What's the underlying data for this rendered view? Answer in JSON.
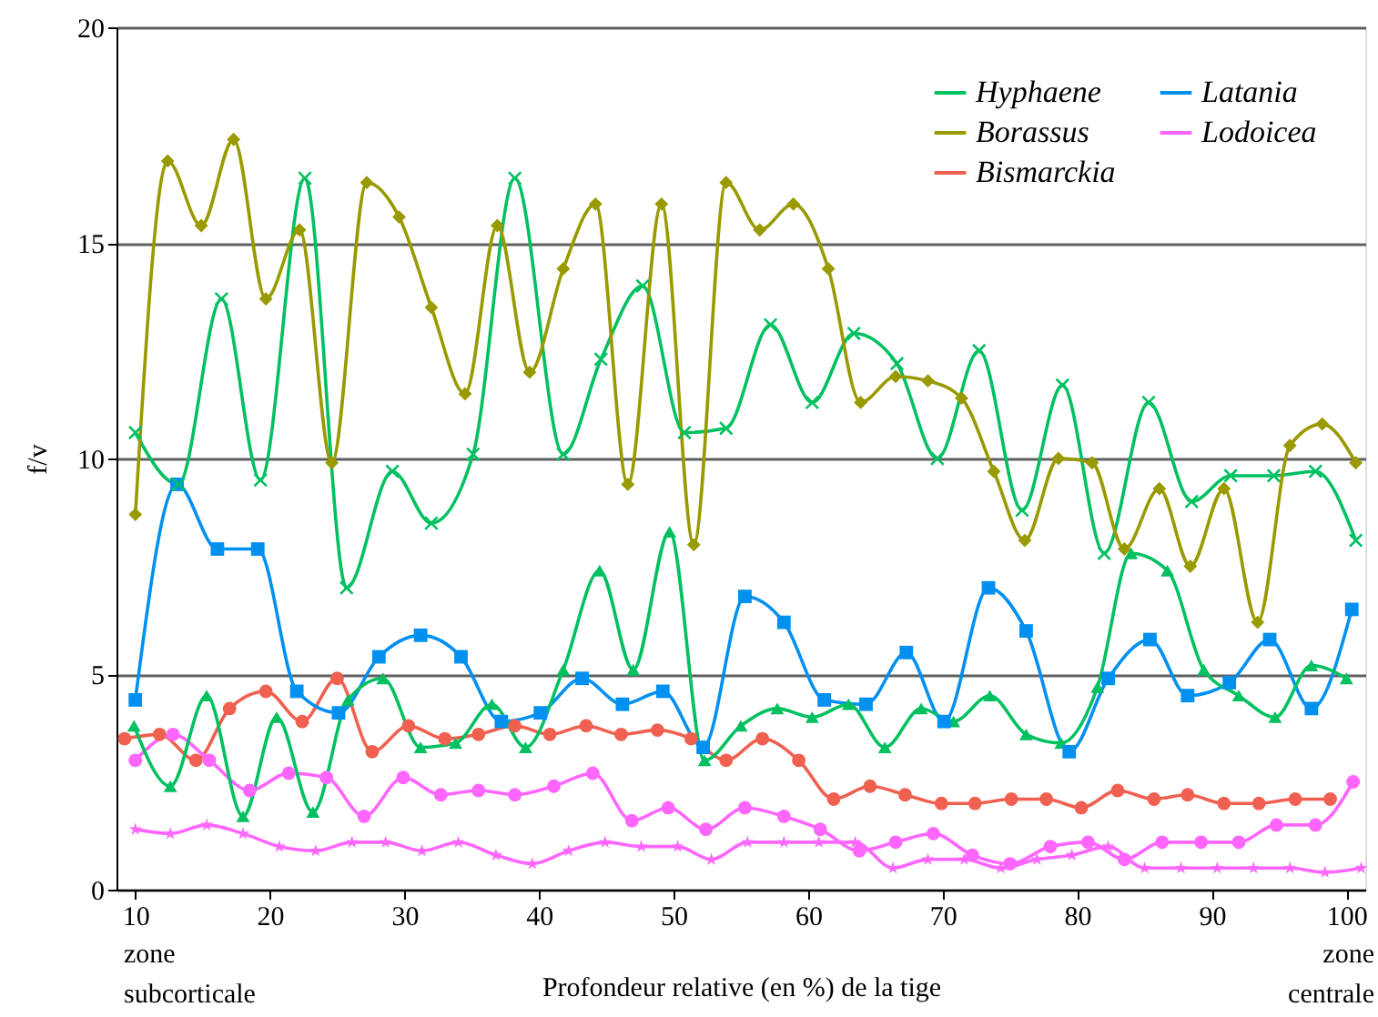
{
  "chart_data": {
    "type": "line",
    "xlabel": "Profondeur relative (en %) de la tige",
    "ylabel": "f/v",
    "xlim": [
      8.6,
      101.4
    ],
    "xticks": [
      10,
      20,
      30,
      40,
      50,
      60,
      70,
      80,
      90,
      100
    ],
    "ylim": [
      0,
      20
    ],
    "yticks": [
      0,
      5,
      10,
      15,
      20
    ],
    "grid": "y",
    "legend": "top right",
    "line_style": "solid",
    "annotations": [
      "zone subcorticale",
      "zone centrale"
    ],
    "series": [
      {
        "name": "Hyphaene",
        "color": "#00c060",
        "marker": "cross",
        "x": [
          10.0,
          13.2,
          16.4,
          19.3,
          22.6,
          25.7,
          29.1,
          32.0,
          35.1,
          38.2,
          41.8,
          44.6,
          47.7,
          50.8,
          53.9,
          57.2,
          60.3,
          63.4,
          66.6,
          69.6,
          72.7,
          75.9,
          78.9,
          82.0,
          85.3,
          88.5,
          91.4,
          94.6,
          97.7,
          100.7
        ],
        "values": [
          10.6,
          9.4,
          13.7,
          9.5,
          16.5,
          7.0,
          9.7,
          8.5,
          10.1,
          16.5,
          10.1,
          12.3,
          14.0,
          10.6,
          10.7,
          13.1,
          11.3,
          12.9,
          12.2,
          10.0,
          12.5,
          8.8,
          11.7,
          7.8,
          11.3,
          9.0,
          9.6,
          9.6,
          9.7,
          8.1
        ]
      },
      {
        "name": "Borassus",
        "color": "#999900",
        "marker": "diamond",
        "x": [
          10.0,
          12.4,
          14.9,
          17.3,
          19.7,
          22.2,
          24.6,
          27.2,
          29.6,
          32.0,
          34.5,
          36.9,
          39.3,
          41.8,
          44.2,
          46.6,
          49.1,
          51.5,
          53.9,
          56.4,
          58.9,
          61.5,
          63.9,
          66.5,
          68.9,
          71.4,
          73.8,
          76.1,
          78.6,
          81.1,
          83.5,
          86.1,
          88.4,
          90.9,
          93.4,
          95.8,
          98.2,
          100.7
        ],
        "values": [
          8.7,
          16.9,
          15.4,
          17.4,
          13.7,
          15.3,
          9.9,
          16.4,
          15.6,
          13.5,
          11.5,
          15.4,
          12.0,
          14.4,
          15.9,
          9.4,
          15.9,
          8.0,
          16.4,
          15.3,
          15.9,
          14.4,
          11.3,
          11.9,
          11.8,
          11.4,
          9.7,
          8.1,
          10.0,
          9.9,
          7.9,
          9.3,
          7.5,
          9.3,
          6.2,
          10.3,
          10.8,
          9.9
        ]
      },
      {
        "name": "Bismarckia",
        "color": "#f06050",
        "marker": "circle",
        "x": [
          9.2,
          11.8,
          14.5,
          17.0,
          19.7,
          22.4,
          25.0,
          27.6,
          30.3,
          33.0,
          35.5,
          38.2,
          40.8,
          43.5,
          46.1,
          48.8,
          51.3,
          53.9,
          56.6,
          59.3,
          61.9,
          64.6,
          67.2,
          69.9,
          72.4,
          75.1,
          77.7,
          80.3,
          83.0,
          85.7,
          88.2,
          90.9,
          93.5,
          96.2,
          98.8
        ],
        "values": [
          3.5,
          3.6,
          3.0,
          4.2,
          4.6,
          3.9,
          4.9,
          3.2,
          3.8,
          3.5,
          3.6,
          3.8,
          3.6,
          3.8,
          3.6,
          3.7,
          3.5,
          3.0,
          3.5,
          3.0,
          2.1,
          2.4,
          2.2,
          2.0,
          2.0,
          2.1,
          2.1,
          1.9,
          2.3,
          2.1,
          2.2,
          2.0,
          2.0,
          2.1,
          2.1
        ]
      },
      {
        "name": "Latania",
        "color": "#0090f0",
        "marker": "square",
        "x": [
          10.0,
          13.1,
          16.1,
          19.1,
          22.0,
          25.1,
          28.1,
          31.2,
          34.2,
          37.2,
          40.1,
          43.2,
          46.2,
          49.2,
          52.2,
          55.3,
          58.2,
          61.2,
          64.3,
          67.3,
          70.1,
          73.4,
          76.2,
          79.4,
          82.3,
          85.4,
          88.2,
          91.3,
          94.3,
          97.4,
          100.4
        ],
        "values": [
          4.4,
          9.4,
          7.9,
          7.9,
          4.6,
          4.1,
          5.4,
          5.9,
          5.4,
          3.9,
          4.1,
          4.9,
          4.3,
          4.6,
          3.3,
          6.8,
          6.2,
          4.4,
          4.3,
          5.5,
          3.9,
          7.0,
          6.0,
          3.2,
          4.9,
          5.8,
          4.5,
          4.8,
          5.8,
          4.2,
          6.5
        ]
      },
      {
        "name": "Lodoicea",
        "color": "#ff66ff",
        "marker": "circle",
        "x": [
          10.0,
          12.8,
          15.5,
          18.5,
          21.4,
          24.2,
          27.0,
          29.9,
          32.7,
          35.5,
          38.2,
          41.1,
          44.0,
          46.9,
          49.6,
          52.4,
          55.3,
          58.2,
          60.9,
          63.8,
          66.5,
          69.3,
          72.2,
          75.0,
          78.0,
          80.8,
          83.5,
          86.3,
          89.2,
          92.0,
          94.8,
          97.7,
          100.5
        ],
        "values": [
          3.0,
          3.6,
          3.0,
          2.3,
          2.7,
          2.6,
          1.7,
          2.6,
          2.2,
          2.3,
          2.2,
          2.4,
          2.7,
          1.6,
          1.9,
          1.4,
          1.9,
          1.7,
          1.4,
          0.9,
          1.1,
          1.3,
          0.8,
          0.6,
          1.0,
          1.1,
          0.7,
          1.1,
          1.1,
          1.1,
          1.5,
          1.5,
          2.5
        ]
      },
      {
        "color": "#00c060",
        "marker": "triangle",
        "x": [
          9.9,
          12.6,
          15.3,
          18.0,
          20.5,
          23.2,
          25.8,
          28.4,
          31.2,
          33.8,
          36.5,
          39.0,
          41.8,
          44.5,
          47.0,
          49.7,
          52.3,
          55.0,
          57.7,
          60.3,
          63.0,
          65.7,
          68.4,
          70.8,
          73.5,
          76.2,
          78.8,
          81.5,
          84.0,
          86.7,
          89.4,
          92.0,
          94.7,
          97.4,
          100.0
        ],
        "values": [
          3.8,
          2.4,
          4.5,
          1.7,
          4.0,
          1.8,
          4.4,
          4.9,
          3.3,
          3.4,
          4.3,
          3.3,
          5.1,
          7.4,
          5.1,
          8.3,
          3.0,
          3.8,
          4.2,
          4.0,
          4.3,
          3.3,
          4.2,
          3.9,
          4.5,
          3.6,
          3.4,
          4.7,
          7.8,
          7.4,
          5.1,
          4.5,
          4.0,
          5.2,
          4.9
        ]
      },
      {
        "color": "#ff66ff",
        "marker": "star",
        "x": [
          10.0,
          12.6,
          15.3,
          18.0,
          20.7,
          23.4,
          26.1,
          28.6,
          31.3,
          34.0,
          36.8,
          39.5,
          42.2,
          44.9,
          47.6,
          50.3,
          52.8,
          55.5,
          58.2,
          60.8,
          63.5,
          66.3,
          68.9,
          71.6,
          74.3,
          77.0,
          79.6,
          82.3,
          85.0,
          87.7,
          90.4,
          93.1,
          95.8,
          98.4,
          101.1
        ],
        "values": [
          1.4,
          1.3,
          1.5,
          1.3,
          1.0,
          0.9,
          1.1,
          1.1,
          0.9,
          1.1,
          0.8,
          0.6,
          0.9,
          1.1,
          1.0,
          1.0,
          0.7,
          1.1,
          1.1,
          1.1,
          1.1,
          0.5,
          0.7,
          0.7,
          0.5,
          0.7,
          0.8,
          1.0,
          0.5,
          0.5,
          0.5,
          0.5,
          0.5,
          0.4,
          0.5
        ]
      }
    ]
  }
}
